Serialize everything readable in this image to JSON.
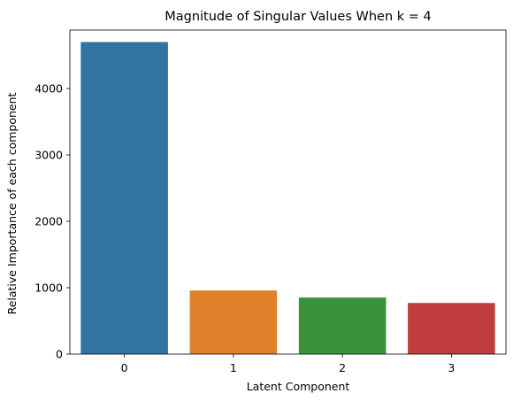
{
  "chart_data": {
    "type": "bar",
    "title": "Magnitude of Singular Values When k = 4",
    "xlabel": "Latent Component",
    "ylabel": "Relative Importance of each component",
    "categories": [
      "0",
      "1",
      "2",
      "3"
    ],
    "values": [
      4700,
      958,
      852,
      770
    ],
    "colors": [
      "#3274a1",
      "#e1812c",
      "#3a923a",
      "#c03d3e"
    ],
    "ylim": [
      0,
      4880
    ],
    "yticks": [
      0,
      1000,
      2000,
      3000,
      4000
    ],
    "grid": false,
    "legend": "none"
  }
}
